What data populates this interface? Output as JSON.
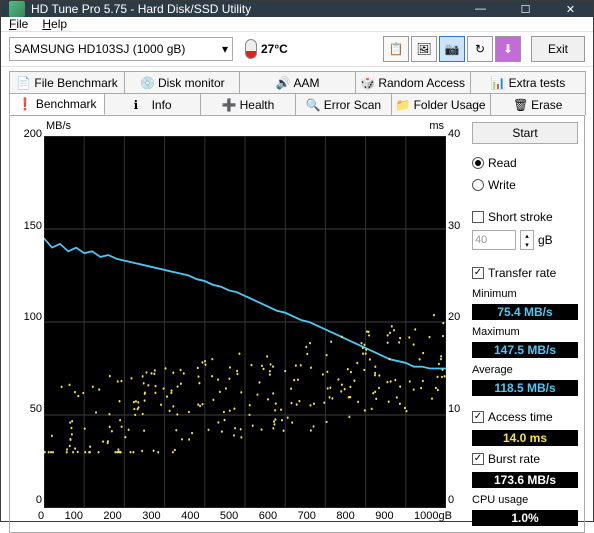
{
  "window": {
    "title": "HD Tune Pro 5.75 - Hard Disk/SSD Utility"
  },
  "menu": {
    "file": "File",
    "help": "Help"
  },
  "toolbar": {
    "drive": "SAMSUNG HD103SJ (1000 gB)",
    "temp": "27°C",
    "exit": "Exit"
  },
  "tabs_row1": [
    {
      "label": "File Benchmark"
    },
    {
      "label": "Disk monitor"
    },
    {
      "label": "AAM"
    },
    {
      "label": "Random Access"
    },
    {
      "label": "Extra tests"
    }
  ],
  "tabs_row2": [
    {
      "label": "Benchmark",
      "active": true
    },
    {
      "label": "Info"
    },
    {
      "label": "Health"
    },
    {
      "label": "Error Scan"
    },
    {
      "label": "Folder Usage"
    },
    {
      "label": "Erase"
    }
  ],
  "chart": {
    "y_left_unit": "MB/s",
    "y_right_unit": "ms",
    "y_left_ticks": [
      "200",
      "150",
      "100",
      "50",
      "0"
    ],
    "y_right_ticks": [
      "40",
      "30",
      "20",
      "10",
      "0"
    ],
    "x_ticks": [
      "0",
      "100",
      "200",
      "300",
      "400",
      "500",
      "600",
      "700",
      "800",
      "900",
      "1000gB"
    ],
    "line_color": "#4ec8f4",
    "scatter_color": "#f4e24e",
    "bg": "#000000",
    "transfer_line": [
      [
        0,
        145
      ],
      [
        20,
        140
      ],
      [
        40,
        142
      ],
      [
        60,
        138
      ],
      [
        80,
        140
      ],
      [
        100,
        137
      ],
      [
        120,
        138
      ],
      [
        140,
        135
      ],
      [
        160,
        136
      ],
      [
        180,
        134
      ],
      [
        200,
        133
      ],
      [
        220,
        132
      ],
      [
        240,
        131
      ],
      [
        260,
        130
      ],
      [
        280,
        129
      ],
      [
        300,
        128
      ],
      [
        320,
        127
      ],
      [
        340,
        126
      ],
      [
        360,
        125
      ],
      [
        380,
        123
      ],
      [
        400,
        122
      ],
      [
        420,
        120
      ],
      [
        440,
        119
      ],
      [
        460,
        117
      ],
      [
        480,
        116
      ],
      [
        500,
        114
      ],
      [
        520,
        112
      ],
      [
        540,
        110
      ],
      [
        560,
        108
      ],
      [
        580,
        106
      ],
      [
        600,
        105
      ],
      [
        620,
        103
      ],
      [
        640,
        101
      ],
      [
        660,
        100
      ],
      [
        680,
        98
      ],
      [
        700,
        96
      ],
      [
        720,
        94
      ],
      [
        740,
        92
      ],
      [
        760,
        90
      ],
      [
        780,
        88
      ],
      [
        800,
        86
      ],
      [
        820,
        84
      ],
      [
        840,
        82
      ],
      [
        860,
        80
      ],
      [
        880,
        79
      ],
      [
        900,
        78
      ],
      [
        920,
        76
      ],
      [
        940,
        76
      ],
      [
        960,
        75
      ],
      [
        980,
        75
      ],
      [
        1000,
        75
      ]
    ],
    "access_scatter_count": 260,
    "access_y_range": [
      6,
      26
    ],
    "x_max": 1000,
    "y_left_max": 200,
    "y_right_max": 40
  },
  "sidebar": {
    "start": "Start",
    "read": "Read",
    "write": "Write",
    "short_stroke": "Short stroke",
    "stroke_val": "40",
    "stroke_unit": "gB",
    "transfer_rate": "Transfer rate",
    "min_label": "Minimum",
    "min_value": "75.4 MB/s",
    "max_label": "Maximum",
    "max_value": "147.5 MB/s",
    "avg_label": "Average",
    "avg_value": "118.5 MB/s",
    "access_time": "Access time",
    "access_value": "14.0 ms",
    "burst_rate": "Burst rate",
    "burst_value": "173.6 MB/s",
    "cpu_label": "CPU usage",
    "cpu_value": "1.0%"
  },
  "colors": {
    "titlebar": "#2c3b47",
    "line": "#4ec8f4",
    "scatter": "#f4e24e"
  }
}
